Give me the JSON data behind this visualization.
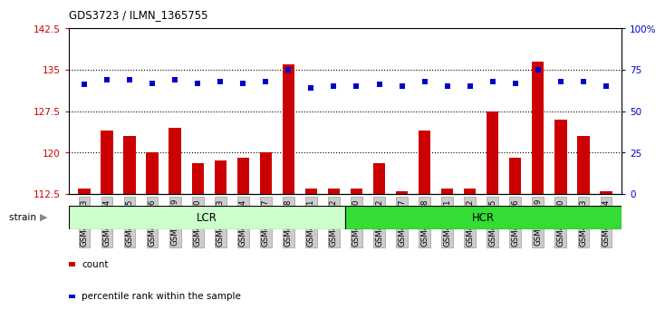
{
  "title": "GDS3723 / ILMN_1365755",
  "samples": [
    "GSM429923",
    "GSM429924",
    "GSM429925",
    "GSM429926",
    "GSM429929",
    "GSM429930",
    "GSM429933",
    "GSM429934",
    "GSM429937",
    "GSM429938",
    "GSM429941",
    "GSM429942",
    "GSM429920",
    "GSM429922",
    "GSM429927",
    "GSM429928",
    "GSM429931",
    "GSM429932",
    "GSM429935",
    "GSM429936",
    "GSM429939",
    "GSM429940",
    "GSM429943",
    "GSM429944"
  ],
  "counts": [
    113.5,
    124.0,
    123.0,
    120.0,
    124.5,
    118.0,
    118.5,
    119.0,
    120.0,
    136.0,
    113.5,
    113.5,
    113.5,
    118.0,
    113.0,
    124.0,
    113.5,
    113.5,
    127.5,
    119.0,
    136.5,
    126.0,
    123.0,
    113.0
  ],
  "percentiles": [
    66,
    69,
    69,
    67,
    69,
    67,
    68,
    67,
    68,
    75,
    64,
    65,
    65,
    66,
    65,
    68,
    65,
    65,
    68,
    67,
    75,
    68,
    68,
    65
  ],
  "lcr_count": 12,
  "hcr_count": 12,
  "ylim_left": [
    112.5,
    142.5
  ],
  "ylim_right": [
    0,
    100
  ],
  "yticks_left": [
    112.5,
    120.0,
    127.5,
    135.0,
    142.5
  ],
  "yticks_right": [
    0,
    25,
    50,
    75,
    100
  ],
  "ytick_labels_left": [
    "112.5",
    "120",
    "127.5",
    "135",
    "142.5"
  ],
  "ytick_labels_right": [
    "0",
    "25",
    "50",
    "75",
    "100%"
  ],
  "bar_color": "#cc0000",
  "dot_color": "#0000cc",
  "lcr_color": "#ccffcc",
  "hcr_color": "#33dd33",
  "tick_bg_color": "#cccccc",
  "strain_label": "strain",
  "lcr_label": "LCR",
  "hcr_label": "HCR",
  "legend_count": "count",
  "legend_pct": "percentile rank within the sample",
  "hlines": [
    120.0,
    127.5,
    135.0
  ]
}
